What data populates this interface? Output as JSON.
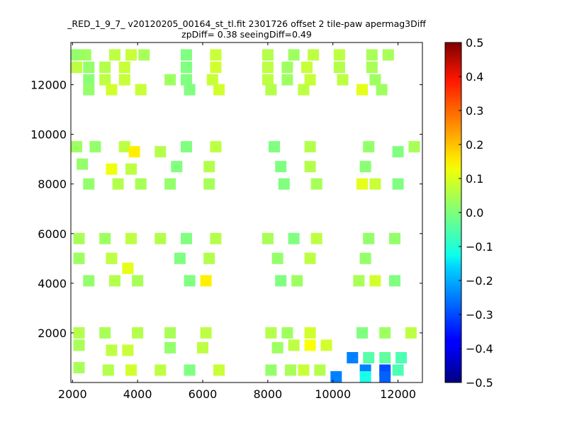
{
  "chart_data": {
    "type": "heatmap",
    "title": "_RED_1_9_7_ v20120205_00164_st_tl.fit 2301726 offset 2 tile-paw apermag3Diff",
    "subtitle": "zpDiff= 0.38 seeingDiff=0.49",
    "xlabel": "",
    "ylabel": "",
    "xlim": [
      1950,
      12750
    ],
    "ylim": [
      0,
      13700
    ],
    "x_ticks": [
      2000,
      4000,
      6000,
      8000,
      10000,
      12000
    ],
    "y_ticks": [
      2000,
      4000,
      6000,
      8000,
      10000,
      12000
    ],
    "grid": false,
    "colormap": "jet",
    "colorbar": {
      "min": -0.5,
      "max": 0.5,
      "ticks": [
        "0.5",
        "0.4",
        "0.3",
        "0.2",
        "0.1",
        "0.0",
        "−0.1",
        "−0.2",
        "−0.3",
        "−0.4",
        "−0.5"
      ]
    },
    "cells": [
      [
        2000,
        13200,
        0.02
      ],
      [
        2400,
        13200,
        0.03
      ],
      [
        3300,
        13200,
        0.06
      ],
      [
        3800,
        13200,
        0.07
      ],
      [
        4200,
        13200,
        0.04
      ],
      [
        5500,
        13200,
        0.0
      ],
      [
        6400,
        13200,
        0.07
      ],
      [
        8000,
        13200,
        0.05
      ],
      [
        8800,
        13200,
        0.03
      ],
      [
        9400,
        13200,
        0.06
      ],
      [
        10200,
        13200,
        0.06
      ],
      [
        11200,
        13200,
        0.04
      ],
      [
        11700,
        13200,
        0.04
      ],
      [
        2000,
        12700,
        0.06
      ],
      [
        2500,
        12700,
        0.02
      ],
      [
        3000,
        12700,
        0.05
      ],
      [
        3600,
        12700,
        0.07
      ],
      [
        5500,
        12700,
        0.0
      ],
      [
        6400,
        12700,
        0.08
      ],
      [
        8000,
        12700,
        0.06
      ],
      [
        8600,
        12700,
        0.03
      ],
      [
        9200,
        12700,
        0.07
      ],
      [
        10200,
        12700,
        0.05
      ],
      [
        11200,
        12700,
        0.04
      ],
      [
        2500,
        12200,
        0.01
      ],
      [
        3000,
        12200,
        0.06
      ],
      [
        3600,
        12200,
        0.07
      ],
      [
        5000,
        12200,
        0.03
      ],
      [
        5500,
        12200,
        0.0
      ],
      [
        6300,
        12200,
        0.07
      ],
      [
        8000,
        12200,
        0.06
      ],
      [
        8600,
        12200,
        0.03
      ],
      [
        9300,
        12200,
        0.07
      ],
      [
        10300,
        12200,
        0.06
      ],
      [
        11300,
        12200,
        0.03
      ],
      [
        2500,
        11800,
        0.02
      ],
      [
        3200,
        11800,
        0.08
      ],
      [
        4100,
        11800,
        0.07
      ],
      [
        5600,
        11800,
        0.0
      ],
      [
        6500,
        11800,
        0.08
      ],
      [
        8100,
        11800,
        0.05
      ],
      [
        9100,
        11800,
        0.06
      ],
      [
        10900,
        11800,
        0.1
      ],
      [
        11500,
        11800,
        0.03
      ],
      [
        2100,
        9500,
        0.03
      ],
      [
        2700,
        9500,
        0.02
      ],
      [
        3600,
        9500,
        0.06
      ],
      [
        3900,
        9300,
        0.14
      ],
      [
        4700,
        9300,
        0.05
      ],
      [
        5500,
        9500,
        0.0
      ],
      [
        6400,
        9500,
        0.06
      ],
      [
        8200,
        9500,
        0.0
      ],
      [
        9300,
        9500,
        0.05
      ],
      [
        11100,
        9500,
        0.02
      ],
      [
        12500,
        9500,
        0.04
      ],
      [
        12000,
        9300,
        0.0
      ],
      [
        2300,
        8800,
        0.02
      ],
      [
        3200,
        8600,
        0.11
      ],
      [
        3800,
        8600,
        0.06
      ],
      [
        5200,
        8700,
        0.0
      ],
      [
        6200,
        8700,
        0.05
      ],
      [
        8400,
        8700,
        0.0
      ],
      [
        9300,
        8700,
        0.05
      ],
      [
        11000,
        8700,
        0.01
      ],
      [
        2500,
        8000,
        0.02
      ],
      [
        3400,
        8000,
        0.05
      ],
      [
        4100,
        8000,
        0.04
      ],
      [
        5000,
        8000,
        0.02
      ],
      [
        6200,
        8000,
        0.04
      ],
      [
        8500,
        8000,
        0.0
      ],
      [
        9500,
        8000,
        0.04
      ],
      [
        10900,
        8000,
        0.1
      ],
      [
        11300,
        8000,
        0.07
      ],
      [
        12000,
        8000,
        0.0
      ],
      [
        2200,
        5800,
        0.04
      ],
      [
        3000,
        5800,
        0.03
      ],
      [
        3800,
        5800,
        0.06
      ],
      [
        4700,
        5800,
        0.05
      ],
      [
        5500,
        5800,
        0.0
      ],
      [
        6400,
        5800,
        0.05
      ],
      [
        8000,
        5800,
        0.04
      ],
      [
        8800,
        5800,
        0.0
      ],
      [
        9500,
        5800,
        0.06
      ],
      [
        11100,
        5800,
        0.02
      ],
      [
        11900,
        5800,
        0.02
      ],
      [
        2200,
        5000,
        0.03
      ],
      [
        3200,
        5000,
        0.06
      ],
      [
        3700,
        4600,
        0.1
      ],
      [
        5300,
        5000,
        0.0
      ],
      [
        6200,
        5000,
        0.05
      ],
      [
        8300,
        5000,
        0.02
      ],
      [
        9300,
        5000,
        0.06
      ],
      [
        11000,
        5000,
        0.02
      ],
      [
        2500,
        4100,
        0.02
      ],
      [
        3300,
        4100,
        0.05
      ],
      [
        4000,
        4100,
        0.04
      ],
      [
        5600,
        4100,
        0.0
      ],
      [
        6100,
        4100,
        0.14
      ],
      [
        8400,
        4100,
        0.0
      ],
      [
        8900,
        4100,
        0.03
      ],
      [
        10800,
        4100,
        0.04
      ],
      [
        11300,
        4100,
        0.08
      ],
      [
        11900,
        4100,
        0.0
      ],
      [
        2200,
        2000,
        0.05
      ],
      [
        3000,
        2000,
        0.04
      ],
      [
        4000,
        2000,
        0.05
      ],
      [
        5000,
        2000,
        0.04
      ],
      [
        6100,
        2000,
        0.06
      ],
      [
        8100,
        2000,
        0.05
      ],
      [
        8600,
        2000,
        0.03
      ],
      [
        9300,
        2000,
        0.08
      ],
      [
        10900,
        2000,
        0.0
      ],
      [
        11600,
        2000,
        0.03
      ],
      [
        12400,
        2000,
        0.06
      ],
      [
        2200,
        1500,
        0.04
      ],
      [
        3200,
        1300,
        0.06
      ],
      [
        3700,
        1300,
        0.07
      ],
      [
        5000,
        1400,
        0.02
      ],
      [
        6000,
        1400,
        0.06
      ],
      [
        8300,
        1400,
        0.03
      ],
      [
        8800,
        1500,
        0.06
      ],
      [
        9300,
        1500,
        0.12
      ],
      [
        9800,
        1500,
        0.08
      ],
      [
        10600,
        1000,
        -0.25
      ],
      [
        11100,
        1000,
        -0.04
      ],
      [
        11600,
        1000,
        -0.03
      ],
      [
        12100,
        1000,
        -0.05
      ],
      [
        2200,
        600,
        0.04
      ],
      [
        3100,
        500,
        0.05
      ],
      [
        3800,
        500,
        0.08
      ],
      [
        4700,
        500,
        0.06
      ],
      [
        5600,
        500,
        0.0
      ],
      [
        6500,
        500,
        0.07
      ],
      [
        8100,
        500,
        0.02
      ],
      [
        8700,
        500,
        0.04
      ],
      [
        9100,
        500,
        0.07
      ],
      [
        9600,
        500,
        0.05
      ],
      [
        10100,
        200,
        -0.25
      ],
      [
        11000,
        500,
        -0.25
      ],
      [
        11600,
        500,
        -0.3
      ],
      [
        11000,
        200,
        -0.1
      ],
      [
        11600,
        200,
        -0.28
      ],
      [
        12000,
        500,
        -0.05
      ]
    ]
  }
}
